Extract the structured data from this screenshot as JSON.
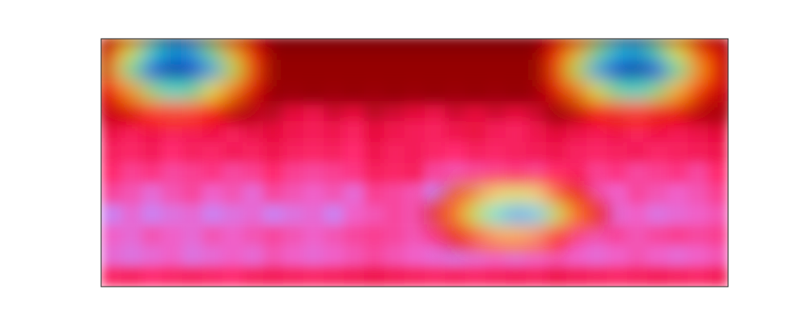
{
  "chart_data": {
    "type": "heatmap",
    "tick_labels": false,
    "cells": [
      [
        0.2,
        0.25,
        0.2,
        0.2,
        0.25,
        0.2,
        0.2,
        0.15,
        0.1,
        0.1,
        0.1,
        0.1,
        0.1,
        0.1,
        0.1,
        0.1,
        0.1,
        0.1,
        0.1,
        0.1,
        0.1,
        0.1,
        0.15,
        0.2,
        0.2,
        0.2,
        0.2,
        0.2,
        0.2,
        0.2,
        0.2
      ],
      [
        0.2,
        0.2,
        0.2,
        0.2,
        0.2,
        0.2,
        0.2,
        0.2,
        0.12,
        0.12,
        0.12,
        0.12,
        0.12,
        0.12,
        0.12,
        0.12,
        0.12,
        0.12,
        0.12,
        0.12,
        0.12,
        0.12,
        0.2,
        0.2,
        0.2,
        0.2,
        0.2,
        0.2,
        0.2,
        0.2,
        0.2
      ],
      [
        0.4,
        0.35,
        0.45,
        0.4,
        0.35,
        0.45,
        0.4,
        0.35,
        0.3,
        0.35,
        0.3,
        0.35,
        0.3,
        0.35,
        0.3,
        0.35,
        0.3,
        0.35,
        0.3,
        0.35,
        0.3,
        0.35,
        0.4,
        0.35,
        0.45,
        0.4,
        0.35,
        0.4,
        0.45,
        0.4,
        0.35
      ],
      [
        0.5,
        0.45,
        0.55,
        0.5,
        0.55,
        0.5,
        0.45,
        0.5,
        0.4,
        0.5,
        0.55,
        0.45,
        0.5,
        0.4,
        0.45,
        0.5,
        0.55,
        0.45,
        0.5,
        0.45,
        0.5,
        0.45,
        0.4,
        0.45,
        0.5,
        0.45,
        0.5,
        0.45,
        0.5,
        0.45,
        0.4
      ],
      [
        0.55,
        0.6,
        0.55,
        0.6,
        0.58,
        0.55,
        0.6,
        0.55,
        0.5,
        0.55,
        0.58,
        0.55,
        0.6,
        0.5,
        0.55,
        0.58,
        0.6,
        0.55,
        0.52,
        0.58,
        0.6,
        0.55,
        0.5,
        0.55,
        0.58,
        0.55,
        0.6,
        0.55,
        0.58,
        0.55,
        0.5
      ],
      [
        0.6,
        0.62,
        0.58,
        0.65,
        0.6,
        0.62,
        0.58,
        0.6,
        0.55,
        0.6,
        0.62,
        0.6,
        0.65,
        0.55,
        0.6,
        0.58,
        0.62,
        0.65,
        0.6,
        0.62,
        0.6,
        0.58,
        0.55,
        0.6,
        0.62,
        0.6,
        0.58,
        0.62,
        0.6,
        0.58,
        0.55
      ],
      [
        0.65,
        0.7,
        0.68,
        0.72,
        0.7,
        0.68,
        0.72,
        0.7,
        0.65,
        0.7,
        0.72,
        0.7,
        0.68,
        0.6,
        0.62,
        0.6,
        0.72,
        0.75,
        0.72,
        0.7,
        0.68,
        0.7,
        0.65,
        0.62,
        0.7,
        0.68,
        0.72,
        0.7,
        0.68,
        0.72,
        0.65
      ],
      [
        0.72,
        0.75,
        0.8,
        0.75,
        0.72,
        0.78,
        0.75,
        0.8,
        0.72,
        0.75,
        0.78,
        0.75,
        0.8,
        0.7,
        0.72,
        0.75,
        0.85,
        0.9,
        0.85,
        0.8,
        0.78,
        0.8,
        0.75,
        0.72,
        0.75,
        0.78,
        0.72,
        0.75,
        0.78,
        0.75,
        0.7
      ],
      [
        0.85,
        0.8,
        0.85,
        0.82,
        0.8,
        0.85,
        0.82,
        0.8,
        0.85,
        0.82,
        0.8,
        0.85,
        0.78,
        0.75,
        0.72,
        0.75,
        0.8,
        0.82,
        0.8,
        0.78,
        0.8,
        0.78,
        0.75,
        0.72,
        0.75,
        0.8,
        0.78,
        0.82,
        0.8,
        0.78,
        0.75
      ],
      [
        0.78,
        0.8,
        0.75,
        0.78,
        0.8,
        0.75,
        0.78,
        0.75,
        0.72,
        0.75,
        0.78,
        0.75,
        0.72,
        0.7,
        0.72,
        0.75,
        0.72,
        0.75,
        0.78,
        0.75,
        0.72,
        0.75,
        0.7,
        0.72,
        0.75,
        0.72,
        0.75,
        0.72,
        0.7,
        0.72,
        0.7
      ],
      [
        0.8,
        0.82,
        0.8,
        0.78,
        0.82,
        0.8,
        0.78,
        0.8,
        0.75,
        0.78,
        0.8,
        0.78,
        0.75,
        0.72,
        0.75,
        0.78,
        0.8,
        0.82,
        0.8,
        0.78,
        0.8,
        0.78,
        0.75,
        0.78,
        0.8,
        0.78,
        0.75,
        0.78,
        0.8,
        0.78,
        0.75
      ],
      [
        0.62,
        0.6,
        0.65,
        0.62,
        0.6,
        0.62,
        0.65,
        0.6,
        0.58,
        0.6,
        0.62,
        0.6,
        0.58,
        0.55,
        0.58,
        0.6,
        0.62,
        0.6,
        0.62,
        0.6,
        0.58,
        0.6,
        0.55,
        0.58,
        0.6,
        0.62,
        0.6,
        0.58,
        0.6,
        0.62,
        0.58
      ]
    ],
    "overlay": [
      [
        0.2,
        0.4,
        0.6,
        0.7,
        0.68,
        0.5,
        0.3,
        0.12,
        0.02,
        0.02,
        0.02,
        0.02,
        0.02,
        0.02,
        0.02,
        0.02,
        0.02,
        0.02,
        0.02,
        0.02,
        0.02,
        0.02,
        0.14,
        0.3,
        0.5,
        0.65,
        0.68,
        0.55,
        0.38,
        0.2,
        0.1
      ],
      [
        0.3,
        0.55,
        0.8,
        0.95,
        0.9,
        0.7,
        0.45,
        0.2,
        0.03,
        0.03,
        0.03,
        0.03,
        0.03,
        0.03,
        0.03,
        0.03,
        0.03,
        0.03,
        0.03,
        0.03,
        0.03,
        0.03,
        0.2,
        0.45,
        0.7,
        0.9,
        0.95,
        0.8,
        0.55,
        0.3,
        0.15
      ],
      [
        0.15,
        0.3,
        0.5,
        0.6,
        0.55,
        0.4,
        0.25,
        0.1,
        0.02,
        0.02,
        0.02,
        0.02,
        0.02,
        0.02,
        0.02,
        0.02,
        0.02,
        0.02,
        0.02,
        0.02,
        0.02,
        0.02,
        0.1,
        0.25,
        0.42,
        0.55,
        0.6,
        0.5,
        0.32,
        0.18,
        0.08
      ],
      [
        0.05,
        0.1,
        0.18,
        0.22,
        0.2,
        0.12,
        0.06,
        0.02,
        null,
        null,
        null,
        null,
        null,
        null,
        null,
        null,
        null,
        null,
        null,
        null,
        null,
        null,
        0.02,
        0.06,
        0.12,
        0.18,
        0.2,
        0.15,
        0.1,
        0.05,
        0.03
      ],
      [
        null,
        null,
        null,
        null,
        null,
        null,
        null,
        null,
        null,
        null,
        null,
        null,
        null,
        null,
        null,
        null,
        null,
        null,
        null,
        null,
        null,
        null,
        null,
        null,
        null,
        null,
        null,
        null,
        null,
        null,
        null
      ],
      [
        null,
        null,
        null,
        null,
        null,
        null,
        null,
        null,
        null,
        null,
        null,
        null,
        null,
        null,
        null,
        null,
        null,
        null,
        null,
        null,
        null,
        null,
        null,
        null,
        null,
        null,
        null,
        null,
        null,
        null,
        null
      ],
      [
        null,
        null,
        null,
        null,
        null,
        null,
        null,
        null,
        null,
        null,
        null,
        null,
        null,
        null,
        null,
        null,
        null,
        null,
        null,
        null,
        null,
        null,
        null,
        null,
        null,
        null,
        null,
        null,
        null,
        null,
        null
      ],
      [
        null,
        null,
        null,
        null,
        null,
        null,
        null,
        null,
        null,
        null,
        null,
        null,
        null,
        null,
        null,
        null,
        null,
        0.12,
        0.25,
        0.35,
        0.4,
        0.35,
        0.2,
        0.1,
        null,
        null,
        null,
        null,
        null,
        null,
        null
      ],
      [
        null,
        null,
        null,
        null,
        null,
        null,
        null,
        null,
        null,
        null,
        null,
        null,
        null,
        null,
        null,
        null,
        0.1,
        0.25,
        0.45,
        0.6,
        0.7,
        0.65,
        0.45,
        0.25,
        0.1,
        null,
        null,
        null,
        null,
        null,
        null
      ],
      [
        null,
        null,
        null,
        null,
        null,
        null,
        null,
        null,
        null,
        null,
        null,
        null,
        null,
        null,
        null,
        null,
        null,
        0.1,
        0.2,
        0.3,
        0.33,
        0.28,
        0.15,
        null,
        null,
        null,
        null,
        null,
        null,
        null,
        null
      ],
      [
        null,
        null,
        null,
        null,
        null,
        null,
        null,
        null,
        null,
        null,
        null,
        null,
        null,
        null,
        null,
        null,
        null,
        null,
        null,
        null,
        null,
        null,
        null,
        null,
        null,
        null,
        null,
        null,
        null,
        null,
        null
      ],
      [
        null,
        null,
        null,
        null,
        null,
        null,
        null,
        null,
        null,
        null,
        null,
        null,
        null,
        null,
        null,
        null,
        null,
        null,
        null,
        null,
        null,
        null,
        null,
        null,
        null,
        null,
        null,
        null,
        null,
        null,
        null
      ]
    ]
  }
}
